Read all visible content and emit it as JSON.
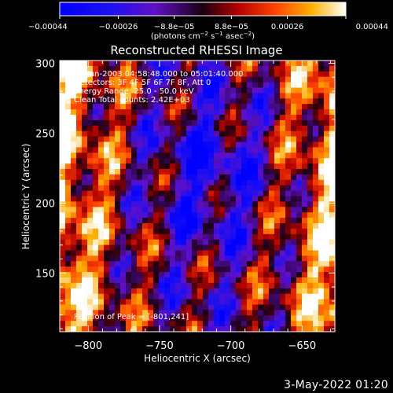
{
  "chart_data": {
    "type": "heatmap",
    "title": "Reconstructed RHESSI Image",
    "xlabel": "Heliocentric X (arcsec)",
    "ylabel": "Heliocentric Y (arcsec)",
    "xlim": [
      -820,
      -627
    ],
    "ylim": [
      108,
      302
    ],
    "x_ticks": [
      -800,
      -750,
      -700,
      -650
    ],
    "x_tick_labels": [
      "−800",
      "−750",
      "−700",
      "−650"
    ],
    "y_ticks": [
      150,
      200,
      250,
      300
    ],
    "y_tick_labels": [
      "150",
      "200",
      "250",
      "300"
    ],
    "colorbar": {
      "range": [
        -0.00044,
        0.00044
      ],
      "ticks": [
        -0.00044,
        -0.00026,
        -8.8e-05,
        8.8e-05,
        0.00026,
        0.00044
      ],
      "tick_labels": [
        "−0.00044",
        "−0.00026",
        "−8.8e−05",
        "8.8e−05",
        "0.00026",
        "0.00044"
      ],
      "units_prefix": "(photons cm",
      "units_exp1": "−2",
      "units_mid": " s",
      "units_exp2": "−1",
      "units_mid2": " asec",
      "units_exp3": "−2",
      "units_suffix": ")"
    },
    "annotations": [
      "30-Jun-2003 04:58:48.000 to 05:01:40.000",
      "Detectors: 3F 4F 5F 6F 7F 8F, Att 0",
      "Energy Range: 25.0 - 50.0 keV",
      "Clean     Total counts: 2.42E+03"
    ],
    "peak_label": "Position of Peak = [-801,241]",
    "peak": [
      -801,
      241
    ]
  },
  "footer": {
    "date": "3-May-2022 01:20"
  }
}
